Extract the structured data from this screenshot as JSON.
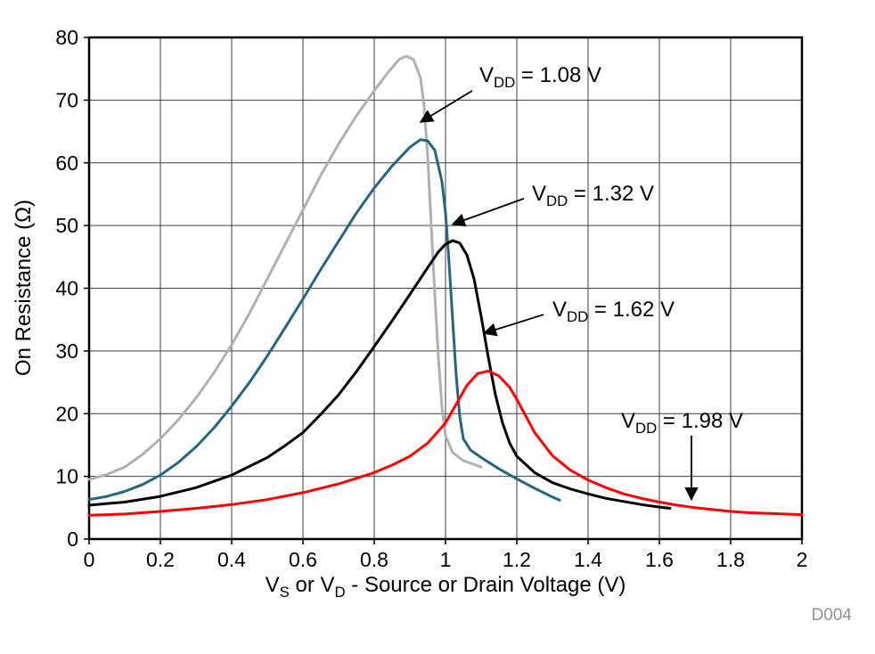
{
  "chart_data": {
    "type": "line",
    "title": "",
    "ylabel": "On Resistance (Ω)",
    "xlabel_parts": [
      {
        "t": "V"
      },
      {
        "sub": "S"
      },
      {
        "t": " or V"
      },
      {
        "sub": "D"
      },
      {
        "t": " - Source or Drain Voltage (V)"
      }
    ],
    "figure_id": "D004",
    "xlim": [
      0,
      2
    ],
    "ylim": [
      0,
      80
    ],
    "grid": true,
    "xticks": [
      [
        0,
        "0"
      ],
      [
        0.2,
        "0.2"
      ],
      [
        0.4,
        "0.4"
      ],
      [
        0.6,
        "0.6"
      ],
      [
        0.8,
        "0.8"
      ],
      [
        1,
        "1"
      ],
      [
        1.2,
        "1.2"
      ],
      [
        1.4,
        "1.4"
      ],
      [
        1.6,
        "1.6"
      ],
      [
        1.8,
        "1.8"
      ],
      [
        2,
        "2"
      ]
    ],
    "yticks": [
      [
        0,
        "0"
      ],
      [
        10,
        "10"
      ],
      [
        20,
        "20"
      ],
      [
        30,
        "30"
      ],
      [
        40,
        "40"
      ],
      [
        50,
        "50"
      ],
      [
        60,
        "60"
      ],
      [
        70,
        "70"
      ],
      [
        80,
        "80"
      ]
    ],
    "series": [
      {
        "name": "VDD = 1.08 V",
        "color": "#b0b0b0",
        "points": [
          [
            0,
            9.5
          ],
          [
            0.05,
            10.3
          ],
          [
            0.1,
            11.5
          ],
          [
            0.15,
            13.5
          ],
          [
            0.2,
            16
          ],
          [
            0.25,
            19
          ],
          [
            0.3,
            22.5
          ],
          [
            0.35,
            26.5
          ],
          [
            0.4,
            31
          ],
          [
            0.45,
            36
          ],
          [
            0.5,
            41.5
          ],
          [
            0.55,
            47
          ],
          [
            0.6,
            52.5
          ],
          [
            0.65,
            58
          ],
          [
            0.7,
            63
          ],
          [
            0.75,
            67.5
          ],
          [
            0.8,
            71.5
          ],
          [
            0.84,
            74.5
          ],
          [
            0.87,
            76.5
          ],
          [
            0.89,
            77
          ],
          [
            0.91,
            76.5
          ],
          [
            0.93,
            73.5
          ],
          [
            0.94,
            69
          ],
          [
            0.95,
            61
          ],
          [
            0.96,
            50
          ],
          [
            0.97,
            39
          ],
          [
            0.98,
            29
          ],
          [
            0.99,
            21
          ],
          [
            1,
            16.5
          ],
          [
            1.02,
            13.8
          ],
          [
            1.05,
            12.5
          ],
          [
            1.1,
            11.5
          ]
        ]
      },
      {
        "name": "VDD = 1.32 V",
        "color": "#26657f",
        "points": [
          [
            0,
            6.3
          ],
          [
            0.05,
            6.8
          ],
          [
            0.1,
            7.6
          ],
          [
            0.15,
            8.7
          ],
          [
            0.2,
            10.2
          ],
          [
            0.25,
            12.2
          ],
          [
            0.3,
            14.7
          ],
          [
            0.35,
            17.7
          ],
          [
            0.4,
            21.2
          ],
          [
            0.45,
            25
          ],
          [
            0.5,
            29.2
          ],
          [
            0.55,
            33.7
          ],
          [
            0.6,
            38.3
          ],
          [
            0.65,
            43
          ],
          [
            0.7,
            47.5
          ],
          [
            0.75,
            52
          ],
          [
            0.8,
            56
          ],
          [
            0.85,
            59.5
          ],
          [
            0.9,
            62.5
          ],
          [
            0.93,
            63.7
          ],
          [
            0.95,
            63.5
          ],
          [
            0.97,
            62
          ],
          [
            0.99,
            57
          ],
          [
            1,
            52
          ],
          [
            1.01,
            44
          ],
          [
            1.02,
            35
          ],
          [
            1.03,
            26
          ],
          [
            1.04,
            19.5
          ],
          [
            1.05,
            16
          ],
          [
            1.07,
            14.2
          ],
          [
            1.1,
            13
          ],
          [
            1.15,
            11.2
          ],
          [
            1.2,
            9.6
          ],
          [
            1.25,
            8.1
          ],
          [
            1.3,
            6.7
          ],
          [
            1.32,
            6.2
          ]
        ]
      },
      {
        "name": "VDD = 1.62 V",
        "color": "#000000",
        "points": [
          [
            0,
            5.4
          ],
          [
            0.1,
            5.9
          ],
          [
            0.2,
            6.8
          ],
          [
            0.3,
            8.2
          ],
          [
            0.4,
            10.2
          ],
          [
            0.5,
            13
          ],
          [
            0.55,
            14.9
          ],
          [
            0.6,
            17
          ],
          [
            0.65,
            19.9
          ],
          [
            0.7,
            23
          ],
          [
            0.75,
            26.7
          ],
          [
            0.8,
            30.7
          ],
          [
            0.85,
            34.8
          ],
          [
            0.9,
            39
          ],
          [
            0.95,
            43.3
          ],
          [
            0.98,
            45.8
          ],
          [
            1,
            47
          ],
          [
            1.02,
            47.6
          ],
          [
            1.04,
            47.2
          ],
          [
            1.06,
            45.3
          ],
          [
            1.08,
            41.5
          ],
          [
            1.1,
            35.5
          ],
          [
            1.12,
            29
          ],
          [
            1.14,
            23
          ],
          [
            1.16,
            18.5
          ],
          [
            1.18,
            15.3
          ],
          [
            1.2,
            13.2
          ],
          [
            1.25,
            10.6
          ],
          [
            1.3,
            9
          ],
          [
            1.35,
            8
          ],
          [
            1.4,
            7.2
          ],
          [
            1.45,
            6.5
          ],
          [
            1.5,
            6
          ],
          [
            1.55,
            5.5
          ],
          [
            1.6,
            5.1
          ],
          [
            1.63,
            4.9
          ]
        ]
      },
      {
        "name": "VDD = 1.98 V",
        "color": "#ff0000",
        "points": [
          [
            0,
            3.8
          ],
          [
            0.1,
            4
          ],
          [
            0.2,
            4.4
          ],
          [
            0.3,
            4.9
          ],
          [
            0.4,
            5.5
          ],
          [
            0.5,
            6.3
          ],
          [
            0.6,
            7.4
          ],
          [
            0.7,
            8.8
          ],
          [
            0.8,
            10.6
          ],
          [
            0.85,
            11.8
          ],
          [
            0.9,
            13.2
          ],
          [
            0.95,
            15.3
          ],
          [
            1,
            18.5
          ],
          [
            1.03,
            21.5
          ],
          [
            1.06,
            24.5
          ],
          [
            1.09,
            26.4
          ],
          [
            1.12,
            26.8
          ],
          [
            1.15,
            26
          ],
          [
            1.18,
            24.2
          ],
          [
            1.2,
            22.3
          ],
          [
            1.25,
            17
          ],
          [
            1.3,
            13.3
          ],
          [
            1.35,
            11
          ],
          [
            1.4,
            9.4
          ],
          [
            1.45,
            8.2
          ],
          [
            1.5,
            7.2
          ],
          [
            1.55,
            6.5
          ],
          [
            1.6,
            5.9
          ],
          [
            1.65,
            5.4
          ],
          [
            1.7,
            5
          ],
          [
            1.75,
            4.7
          ],
          [
            1.8,
            4.4
          ],
          [
            1.85,
            4.2
          ],
          [
            1.9,
            4.1
          ],
          [
            1.95,
            4
          ],
          [
            2,
            3.9
          ]
        ]
      }
    ],
    "annotations": [
      {
        "prefix": "V",
        "sub": "DD",
        "suffix": " = 1.08 V",
        "label_x": 1.095,
        "label_y": 73.6,
        "arrow": [
          [
            1.075,
            71.5
          ],
          [
            0.93,
            66.5
          ]
        ]
      },
      {
        "prefix": "V",
        "sub": "DD",
        "suffix": " = 1.32 V",
        "label_x": 1.2425,
        "label_y": 54.7,
        "arrow": [
          [
            1.22,
            54.3
          ],
          [
            1.02,
            50.2
          ]
        ]
      },
      {
        "prefix": "V",
        "sub": "DD",
        "suffix": " = 1.62 V",
        "label_x": 1.3,
        "label_y": 36.2,
        "arrow": [
          [
            1.275,
            35.8
          ],
          [
            1.108,
            32.8
          ]
        ]
      },
      {
        "prefix": "V",
        "sub": "DD",
        "suffix": " = 1.98 V",
        "label_x": 1.4925,
        "label_y": 18.5,
        "arrow": [
          [
            1.69,
            16.5
          ],
          [
            1.69,
            6.3
          ]
        ]
      }
    ]
  }
}
